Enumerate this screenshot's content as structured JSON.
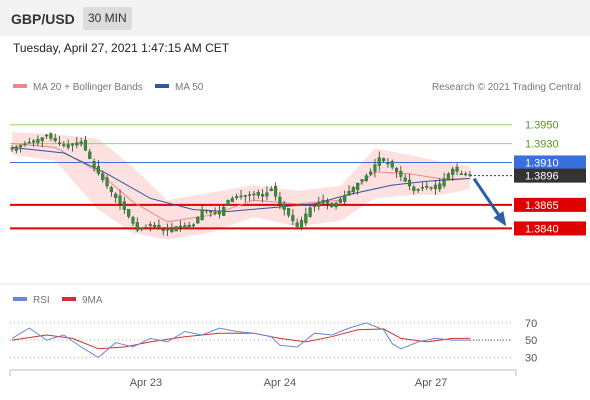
{
  "header": {
    "symbol": "GBP/USD",
    "timeframe": "30 MIN",
    "datetime": "Tuesday, April 27, 2021 1:47:15 AM CET"
  },
  "legend": {
    "ma20": "MA 20 + Bollinger Bands",
    "ma50": "MA 50",
    "credit": "Research © 2021 Trading Central",
    "rsi": "RSI",
    "rsi_ma": "9MA"
  },
  "colors": {
    "candle": "#3a8a3a",
    "ma20": "#e88a8a",
    "bands_fill": "#fde0e0",
    "ma50": "#34569a",
    "resistance": "#9ccf6a",
    "pivot": "#3a6fe0",
    "support": "#e00000",
    "price_tag": "#333333",
    "arrow": "#2a5ea8",
    "rsi": "#6a86d8",
    "rsi_ma": "#d23030"
  },
  "chart_data": [
    {
      "type": "candlestick",
      "title": "",
      "y_range": [
        1.3815,
        1.3972
      ],
      "x_labels": [
        "Apr 23",
        "Apr 24",
        "Apr 27"
      ],
      "levels": [
        {
          "value": 1.395,
          "label": "1.3950",
          "kind": "resistance"
        },
        {
          "value": 1.393,
          "label": "1.3930",
          "kind": "resistance"
        },
        {
          "value": 1.391,
          "label": "1.3910",
          "kind": "pivot"
        },
        {
          "value": 1.3896,
          "label": "1.3896",
          "kind": "last-price"
        },
        {
          "value": 1.3865,
          "label": "1.3865",
          "kind": "support"
        },
        {
          "value": 1.384,
          "label": "1.3840",
          "kind": "support"
        }
      ],
      "close_path": [
        [
          0,
          1.3925
        ],
        [
          8,
          1.3938
        ],
        [
          12,
          1.3928
        ],
        [
          16,
          1.3932
        ],
        [
          19,
          1.3905
        ],
        [
          22,
          1.3885
        ],
        [
          26,
          1.386
        ],
        [
          29,
          1.3838
        ],
        [
          32,
          1.3843
        ],
        [
          36,
          1.3838
        ],
        [
          38,
          1.3842
        ],
        [
          42,
          1.3844
        ],
        [
          44,
          1.386
        ],
        [
          48,
          1.3855
        ],
        [
          50,
          1.387
        ],
        [
          52,
          1.3874
        ],
        [
          56,
          1.3876
        ],
        [
          58,
          1.3874
        ],
        [
          60,
          1.3882
        ],
        [
          62,
          1.3866
        ],
        [
          66,
          1.3842
        ],
        [
          69,
          1.3862
        ],
        [
          72,
          1.387
        ],
        [
          74,
          1.3863
        ],
        [
          77,
          1.3875
        ],
        [
          80,
          1.3888
        ],
        [
          83,
          1.39
        ],
        [
          85,
          1.3915
        ],
        [
          88,
          1.3905
        ],
        [
          90,
          1.3895
        ],
        [
          93,
          1.388
        ],
        [
          96,
          1.3885
        ],
        [
          98,
          1.3882
        ],
        [
          100,
          1.3893
        ],
        [
          102,
          1.3903
        ],
        [
          104,
          1.3898
        ],
        [
          106,
          1.3896
        ]
      ],
      "ma20_path": [
        [
          0,
          1.393
        ],
        [
          10,
          1.3926
        ],
        [
          20,
          1.39
        ],
        [
          28,
          1.3868
        ],
        [
          36,
          1.3847
        ],
        [
          46,
          1.3854
        ],
        [
          56,
          1.387
        ],
        [
          66,
          1.3866
        ],
        [
          76,
          1.387
        ],
        [
          84,
          1.39
        ],
        [
          92,
          1.3898
        ],
        [
          100,
          1.3892
        ],
        [
          106,
          1.3893
        ]
      ],
      "ma50_path": [
        [
          0,
          1.3926
        ],
        [
          12,
          1.392
        ],
        [
          22,
          1.3898
        ],
        [
          32,
          1.3872
        ],
        [
          42,
          1.386
        ],
        [
          50,
          1.3858
        ],
        [
          60,
          1.3862
        ],
        [
          70,
          1.3866
        ],
        [
          78,
          1.3876
        ],
        [
          88,
          1.3886
        ],
        [
          96,
          1.389
        ],
        [
          106,
          1.3893
        ]
      ],
      "band_upper": [
        [
          0,
          1.3942
        ],
        [
          10,
          1.394
        ],
        [
          20,
          1.3935
        ],
        [
          28,
          1.3905
        ],
        [
          36,
          1.387
        ],
        [
          46,
          1.3878
        ],
        [
          56,
          1.3886
        ],
        [
          66,
          1.388
        ],
        [
          76,
          1.3885
        ],
        [
          84,
          1.3925
        ],
        [
          92,
          1.3918
        ],
        [
          100,
          1.391
        ],
        [
          106,
          1.3906
        ]
      ],
      "band_lower": [
        [
          0,
          1.3918
        ],
        [
          10,
          1.3912
        ],
        [
          20,
          1.386
        ],
        [
          28,
          1.3835
        ],
        [
          36,
          1.3828
        ],
        [
          46,
          1.3836
        ],
        [
          56,
          1.3852
        ],
        [
          66,
          1.3842
        ],
        [
          76,
          1.3848
        ],
        [
          84,
          1.3872
        ],
        [
          92,
          1.3875
        ],
        [
          100,
          1.3876
        ],
        [
          106,
          1.3882
        ]
      ],
      "projection": {
        "from": [
          106,
          1.3896
        ],
        "to": [
          114,
          1.3843
        ]
      }
    },
    {
      "type": "line",
      "title": "",
      "y_range": [
        20,
        78
      ],
      "y_ticks": [
        70,
        50,
        30
      ],
      "series": [
        {
          "name": "RSI",
          "points": [
            [
              0,
              52
            ],
            [
              4,
              64
            ],
            [
              8,
              50
            ],
            [
              12,
              56
            ],
            [
              16,
              42
            ],
            [
              18,
              36
            ],
            [
              20,
              30
            ],
            [
              24,
              47
            ],
            [
              28,
              42
            ],
            [
              32,
              52
            ],
            [
              36,
              48
            ],
            [
              40,
              60
            ],
            [
              44,
              56
            ],
            [
              48,
              64
            ],
            [
              52,
              60
            ],
            [
              56,
              58
            ],
            [
              60,
              54
            ],
            [
              62,
              44
            ],
            [
              66,
              42
            ],
            [
              70,
              58
            ],
            [
              74,
              56
            ],
            [
              78,
              64
            ],
            [
              82,
              70
            ],
            [
              86,
              62
            ],
            [
              88,
              46
            ],
            [
              90,
              40
            ],
            [
              94,
              48
            ],
            [
              98,
              52
            ],
            [
              102,
              50
            ],
            [
              106,
              50
            ]
          ]
        },
        {
          "name": "9MA",
          "points": [
            [
              0,
              50
            ],
            [
              8,
              56
            ],
            [
              14,
              52
            ],
            [
              20,
              40
            ],
            [
              26,
              42
            ],
            [
              32,
              48
            ],
            [
              40,
              54
            ],
            [
              48,
              58
            ],
            [
              56,
              58
            ],
            [
              62,
              52
            ],
            [
              68,
              48
            ],
            [
              74,
              54
            ],
            [
              80,
              62
            ],
            [
              86,
              63
            ],
            [
              90,
              52
            ],
            [
              96,
              48
            ],
            [
              102,
              52
            ],
            [
              106,
              52
            ]
          ]
        }
      ],
      "last_value": 50
    }
  ]
}
